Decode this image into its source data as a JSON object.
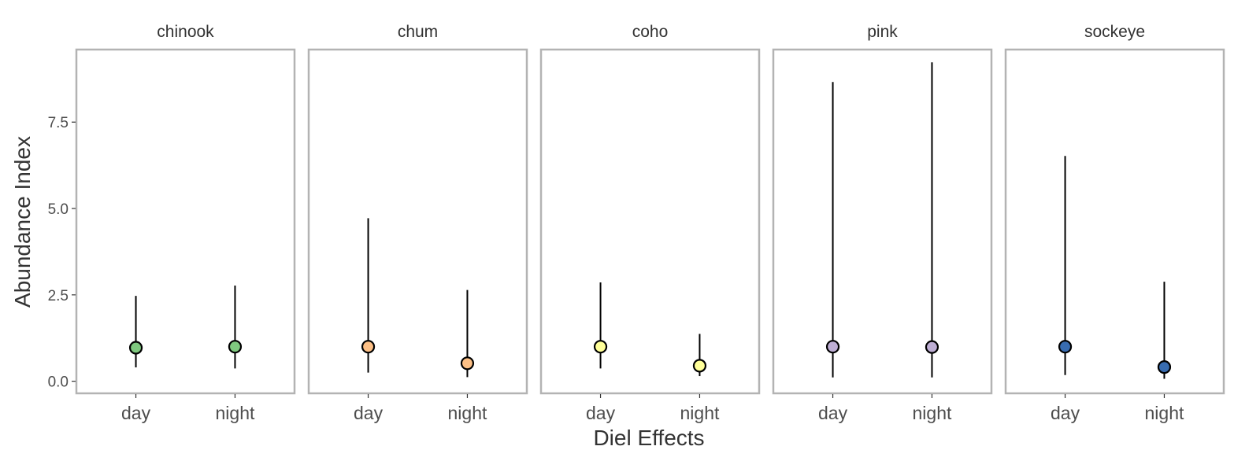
{
  "chart_data": {
    "type": "pointrange-facet",
    "xlabel": "Diel Effects",
    "ylabel": "Abundance Index",
    "categories": [
      "day",
      "night"
    ],
    "ylim": [
      -0.35,
      9.6
    ],
    "yticks": [
      0.0,
      2.5,
      5.0,
      7.5
    ],
    "ytick_labels": [
      "0.0",
      "2.5",
      "5.0",
      "7.5"
    ],
    "grid": false,
    "legend": "none",
    "facets": [
      {
        "name": "chinook",
        "color": "#7fc97f",
        "points": [
          {
            "x": "day",
            "y": 0.97,
            "lower": 0.4,
            "upper": 2.47
          },
          {
            "x": "night",
            "y": 1.0,
            "lower": 0.37,
            "upper": 2.77
          }
        ]
      },
      {
        "name": "chum",
        "color": "#fdc086",
        "points": [
          {
            "x": "day",
            "y": 1.0,
            "lower": 0.25,
            "upper": 4.72
          },
          {
            "x": "night",
            "y": 0.52,
            "lower": 0.12,
            "upper": 2.64
          }
        ]
      },
      {
        "name": "coho",
        "color": "#ffff99",
        "points": [
          {
            "x": "day",
            "y": 1.0,
            "lower": 0.37,
            "upper": 2.86
          },
          {
            "x": "night",
            "y": 0.45,
            "lower": 0.15,
            "upper": 1.37
          }
        ]
      },
      {
        "name": "pink",
        "color": "#beaed4",
        "points": [
          {
            "x": "day",
            "y": 1.0,
            "lower": 0.11,
            "upper": 8.66
          },
          {
            "x": "night",
            "y": 0.99,
            "lower": 0.11,
            "upper": 9.23
          }
        ]
      },
      {
        "name": "sockeye",
        "color": "#386cb0",
        "points": [
          {
            "x": "day",
            "y": 1.0,
            "lower": 0.18,
            "upper": 6.52
          },
          {
            "x": "night",
            "y": 0.41,
            "lower": 0.07,
            "upper": 2.88
          }
        ]
      }
    ]
  }
}
